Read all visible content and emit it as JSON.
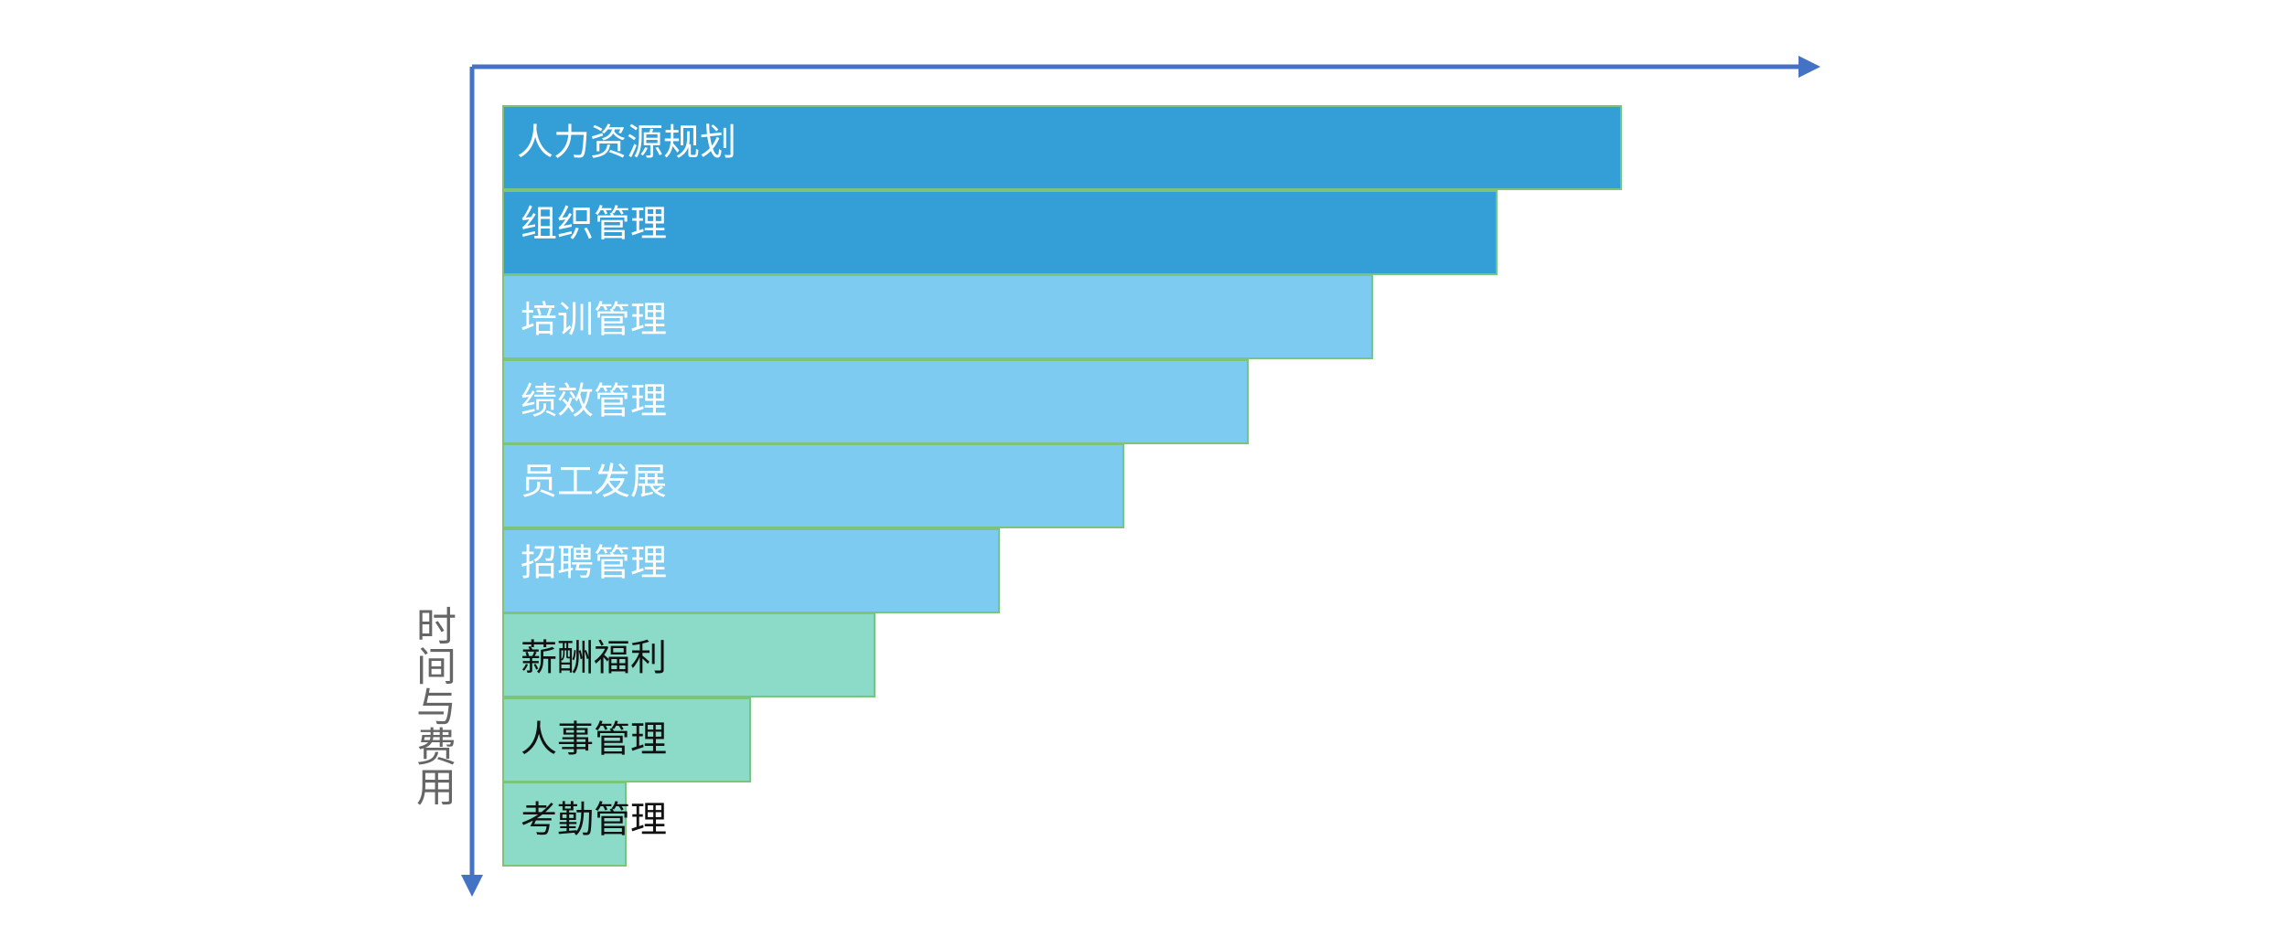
{
  "axis": {
    "y_label": "时间与费用",
    "color": "#4472c4"
  },
  "colors": {
    "dark_blue": "#349fd6",
    "light_blue": "#7dcbf0",
    "teal": "#8bdbc8",
    "bar_border": "#7cc47a",
    "label_light": "#ffffff",
    "label_dark": "#111111"
  },
  "stairs": [
    {
      "label": "人力资源规划",
      "rank": 9,
      "color": "dark_blue",
      "text_color": "label_light"
    },
    {
      "label": "组织管理",
      "rank": 8,
      "color": "dark_blue",
      "text_color": "label_light"
    },
    {
      "label": "培训管理",
      "rank": 7,
      "color": "light_blue",
      "text_color": "label_light"
    },
    {
      "label": "绩效管理",
      "rank": 6,
      "color": "light_blue",
      "text_color": "label_light"
    },
    {
      "label": "员工发展",
      "rank": 5,
      "color": "light_blue",
      "text_color": "label_light"
    },
    {
      "label": "招聘管理",
      "rank": 4,
      "color": "light_blue",
      "text_color": "label_light"
    },
    {
      "label": "薪酬福利",
      "rank": 3,
      "color": "teal",
      "text_color": "label_dark"
    },
    {
      "label": "人事管理",
      "rank": 2,
      "color": "teal",
      "text_color": "label_dark"
    },
    {
      "label": "考勤管理",
      "rank": 1,
      "color": "teal",
      "text_color": "label_dark"
    }
  ]
}
